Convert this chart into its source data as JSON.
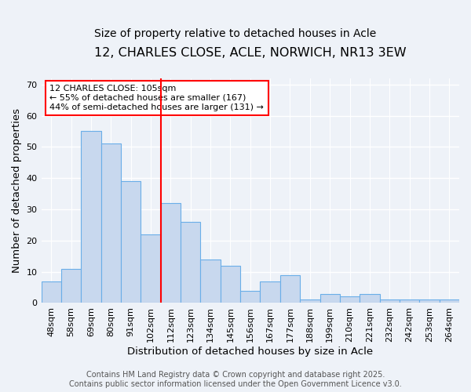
{
  "title": "12, CHARLES CLOSE, ACLE, NORWICH, NR13 3EW",
  "subtitle": "Size of property relative to detached houses in Acle",
  "xlabel": "Distribution of detached houses by size in Acle",
  "ylabel": "Number of detached properties",
  "categories": [
    "48sqm",
    "58sqm",
    "69sqm",
    "80sqm",
    "91sqm",
    "102sqm",
    "112sqm",
    "123sqm",
    "134sqm",
    "145sqm",
    "156sqm",
    "167sqm",
    "177sqm",
    "188sqm",
    "199sqm",
    "210sqm",
    "221sqm",
    "232sqm",
    "242sqm",
    "253sqm",
    "264sqm"
  ],
  "values": [
    7,
    11,
    55,
    51,
    39,
    22,
    32,
    26,
    14,
    12,
    4,
    7,
    9,
    1,
    3,
    2,
    3,
    1,
    1,
    1,
    1
  ],
  "bar_color": "#c8d8ee",
  "bar_edge_color": "#6aaee8",
  "background_color": "#eef2f8",
  "grid_color": "#ffffff",
  "red_line_x": 5.5,
  "annotation_text": "12 CHARLES CLOSE: 105sqm\n← 55% of detached houses are smaller (167)\n44% of semi-detached houses are larger (131) →",
  "annotation_box_color": "white",
  "annotation_box_edge": "red",
  "ylim": [
    0,
    72
  ],
  "yticks": [
    0,
    10,
    20,
    30,
    40,
    50,
    60,
    70
  ],
  "footer": "Contains HM Land Registry data © Crown copyright and database right 2025.\nContains public sector information licensed under the Open Government Licence v3.0.",
  "title_fontsize": 11.5,
  "subtitle_fontsize": 10,
  "axis_label_fontsize": 9.5,
  "tick_fontsize": 8,
  "annotation_fontsize": 8,
  "footer_fontsize": 7
}
